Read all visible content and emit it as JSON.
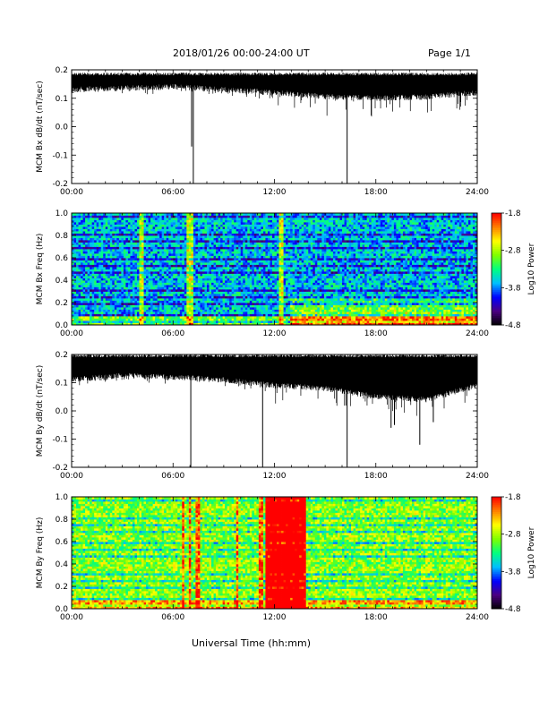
{
  "header": {
    "date_title": "2018/01/26  00:00-24:00 UT",
    "page_label": "Page 1/1"
  },
  "x_title": "Universal Time (hh:mm)",
  "colors": {
    "trace": "#000000",
    "background": "#ffffff",
    "colormap": [
      "#000000",
      "#4b0082",
      "#0000ff",
      "#00bfff",
      "#00ff80",
      "#7fff00",
      "#ffff00",
      "#ff8000",
      "#ff0000"
    ]
  },
  "chart_data": [
    {
      "type": "line",
      "ylabel": "MCM Bx dB/dt (nT/sec)",
      "xlim": [
        0,
        24
      ],
      "ylim": [
        -0.2,
        0.2
      ],
      "x_ticks": [
        "00:00",
        "06:00",
        "12:00",
        "18:00",
        "24:00"
      ],
      "y_ticks": [
        "-0.2",
        "-0.1",
        "0.0",
        "0.1",
        "0.2"
      ],
      "y_tick_values": [
        -0.2,
        -0.1,
        0.0,
        0.1,
        0.2
      ],
      "baseline_upper": 0.19,
      "baseline_lower": [
        [
          0,
          0.14
        ],
        [
          3,
          0.145
        ],
        [
          6,
          0.15
        ],
        [
          9,
          0.14
        ],
        [
          12,
          0.13
        ],
        [
          15,
          0.115
        ],
        [
          18,
          0.11
        ],
        [
          21,
          0.115
        ],
        [
          24,
          0.13
        ]
      ],
      "spikes": [
        {
          "x": 7.1,
          "y": -0.07
        },
        {
          "x": 7.2,
          "y": -0.2
        },
        {
          "x": 16.3,
          "y": -0.2
        }
      ]
    },
    {
      "type": "heatmap",
      "ylabel": "MCM Bx Freq (Hz)",
      "xlim": [
        0,
        24
      ],
      "ylim": [
        0,
        1.0
      ],
      "x_ticks": [
        "00:00",
        "06:00",
        "12:00",
        "18:00",
        "24:00"
      ],
      "y_ticks": [
        "0.0",
        "0.2",
        "0.4",
        "0.6",
        "0.8",
        "1.0"
      ],
      "y_tick_values": [
        0,
        0.2,
        0.4,
        0.6,
        0.8,
        1.0
      ],
      "colorbar": {
        "label": "Log10 Power",
        "tick_labels": [
          "-1.8",
          "-2.8",
          "-3.8",
          "-4.8"
        ],
        "tick_values": [
          -1.8,
          -2.8,
          -3.8,
          -4.8
        ],
        "range": [
          -4.8,
          -1.8
        ]
      },
      "background_level": -3.6,
      "bright_columns_hours": [
        4.1,
        4.2,
        6.9,
        7.1,
        12.4
      ],
      "enhanced_region": {
        "from_hour": 13,
        "to_hour": 24,
        "max_freq": 0.25
      }
    },
    {
      "type": "line",
      "ylabel": "MCM By dB/dt (nT/sec)",
      "xlim": [
        0,
        24
      ],
      "ylim": [
        -0.2,
        0.2
      ],
      "x_ticks": [
        "00:00",
        "06:00",
        "12:00",
        "18:00",
        "24:00"
      ],
      "y_ticks": [
        "-0.2",
        "-0.1",
        "0.0",
        "0.1",
        "0.2"
      ],
      "y_tick_values": [
        -0.2,
        -0.1,
        0.0,
        0.1,
        0.2
      ],
      "baseline_upper": 0.2,
      "baseline_lower": [
        [
          0,
          0.12
        ],
        [
          3,
          0.135
        ],
        [
          6,
          0.13
        ],
        [
          9,
          0.12
        ],
        [
          12,
          0.1
        ],
        [
          15,
          0.09
        ],
        [
          18,
          0.06
        ],
        [
          21,
          0.05
        ],
        [
          24,
          0.1
        ]
      ],
      "spikes": [
        {
          "x": 7.05,
          "y": -0.2
        },
        {
          "x": 11.3,
          "y": -0.2
        },
        {
          "x": 16.3,
          "y": -0.2
        },
        {
          "x": 18.9,
          "y": -0.06
        },
        {
          "x": 19.1,
          "y": -0.05
        },
        {
          "x": 20.6,
          "y": -0.12
        },
        {
          "x": 21.4,
          "y": -0.04
        }
      ]
    },
    {
      "type": "heatmap",
      "ylabel": "MCM By Freq (Hz)",
      "xlim": [
        0,
        24
      ],
      "ylim": [
        0,
        1.0
      ],
      "x_ticks": [
        "00:00",
        "06:00",
        "12:00",
        "18:00",
        "24:00"
      ],
      "y_ticks": [
        "0.0",
        "0.2",
        "0.4",
        "0.6",
        "0.8",
        "1.0"
      ],
      "y_tick_values": [
        0,
        0.2,
        0.4,
        0.6,
        0.8,
        1.0
      ],
      "colorbar": {
        "label": "Log10 Power",
        "tick_labels": [
          "-1.8",
          "-2.8",
          "-3.8",
          "-4.8"
        ],
        "tick_values": [
          -1.8,
          -2.8,
          -3.8,
          -4.8
        ],
        "range": [
          -4.8,
          -1.8
        ]
      },
      "background_level": -2.9,
      "bright_columns_hours": [
        6.6,
        7.0,
        7.5,
        9.8,
        11.2
      ],
      "enhanced_region": {
        "from_hour": 11.5,
        "to_hour": 13.8,
        "max_freq": 1.0
      }
    }
  ]
}
